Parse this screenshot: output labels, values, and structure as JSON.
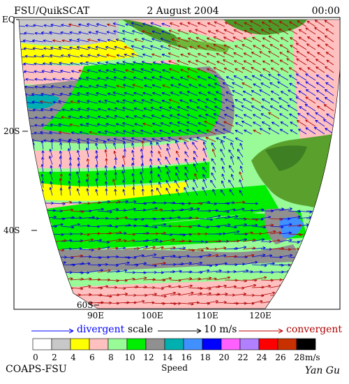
{
  "header": {
    "left": "FSU/QuikSCAT",
    "center": "2 August 2004",
    "right": "00:00"
  },
  "map": {
    "lat_labels": [
      "EQ",
      "20S",
      "40S",
      "60S"
    ],
    "lon_labels": [
      "90E",
      "100E",
      "110E",
      "120E"
    ]
  },
  "legend": {
    "divergent": "divergent",
    "scale": "scale",
    "scale_value": "10 m/s",
    "convergent": "convergent"
  },
  "colorbar": {
    "ticks": [
      0,
      2,
      4,
      6,
      8,
      10,
      12,
      14,
      16,
      18,
      20,
      22,
      24,
      26,
      28
    ],
    "unit": "m/s",
    "label": "Speed",
    "colors": [
      "#ffffff",
      "#c8c8c8",
      "#ffff00",
      "#ffc0c0",
      "#98fb98",
      "#00ee00",
      "#909090",
      "#00b0b0",
      "#4090ff",
      "#0000ff",
      "#ff60ff",
      "#b080ff",
      "#ff0000",
      "#c83000",
      "#000000"
    ]
  },
  "footer": {
    "left": "COAPS-FSU",
    "right": "Yan Gu"
  }
}
